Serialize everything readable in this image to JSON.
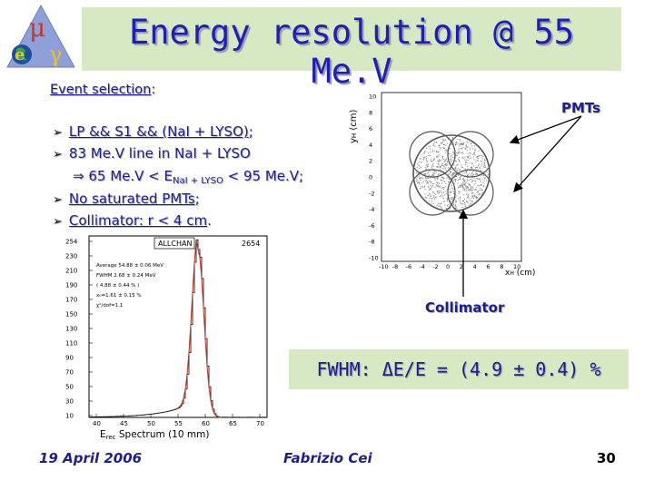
{
  "header": {
    "title": "Energy resolution @ 55 Me.V",
    "logo_glyphs": {
      "mu": "μ",
      "e": "e",
      "gamma": "γ"
    }
  },
  "selection": {
    "heading": "Event selection",
    "colon": ":",
    "bullets": {
      "b1_main": "LP && S1 && (NaI + LYSO)",
      "b1_end": ";",
      "b2": "83 Me.V line in NaI + LYSO",
      "b3_a": "⇒ 65 Me.V < E",
      "b3_sub": "NaI + LYSO",
      "b3_b": " < 95 Me.V",
      "b3_end": ";",
      "b4_main": "No saturated PMTs",
      "b4_end": ";",
      "b5_main": "Collimator: r < 4 cm",
      "b5_end": "."
    }
  },
  "histogram": {
    "title_box": "ALLCHAN",
    "entries": "2654",
    "stats": [
      "Average 54.88 ± 0.06 MeV",
      "FWHM   2.68 ± 0.24 MeV",
      "( 4.88 ± 0.44 % )",
      "x₀=1.61 ± 0.15 %",
      "χ²/dof=1.1"
    ],
    "y_ticks": [
      "254",
      "230",
      "210",
      "190",
      "170",
      "150",
      "130",
      "110",
      "90",
      "70",
      "50",
      "30",
      "10"
    ],
    "x_ticks": [
      "40",
      "45",
      "50",
      "55",
      "60",
      "65",
      "70"
    ],
    "xlabel": "E",
    "xlabel_sub": "rec",
    "xlabel_rest": " Spectrum (10 mm)"
  },
  "scatter": {
    "ylabel": "y",
    "ylabel_sub": "H",
    "ylabel_rest": " (cm)",
    "xlabel": "x",
    "xlabel_sub": "H",
    "xlabel_rest": " (cm)",
    "y_ticks": [
      "10",
      "8",
      "6",
      "4",
      "2",
      "0",
      "-2",
      "-4",
      "-6",
      "-8",
      "-10"
    ],
    "x_ticks": [
      "-10",
      "-8",
      "-6",
      "-4",
      "-2",
      "0",
      "2",
      "4",
      "6",
      "8",
      "10"
    ]
  },
  "labels": {
    "pmts": "PMTs",
    "collimator": "Collimator"
  },
  "result": {
    "fwhm": "FWHM: ΔE/E = (4.9 ± 0.4) %"
  },
  "footer": {
    "date": "19 April 2006",
    "author": "Fabrizio Cei",
    "page": "30"
  },
  "colors": {
    "title": "#1f1fb8",
    "text": "#1e1e8c",
    "box": "#d6e9c3",
    "fit": "#c0392b"
  }
}
